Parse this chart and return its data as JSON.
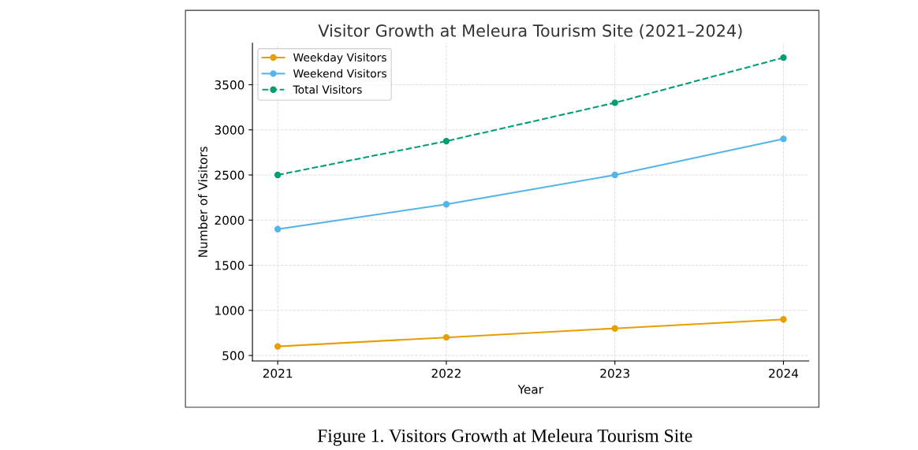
{
  "chart_data": {
    "type": "line",
    "title": "Visitor Growth at Meleura Tourism Site (2021–2024)",
    "xlabel": "Year",
    "ylabel": "Number of Visitors",
    "x": [
      2021,
      2022,
      2023,
      2024
    ],
    "series": [
      {
        "name": "Weekday Visitors",
        "color": "#e69f00",
        "values": [
          600,
          700,
          800,
          900
        ],
        "line_style": "solid"
      },
      {
        "name": "Weekend Visitors",
        "color": "#56b4e9",
        "values": [
          1900,
          2175,
          2500,
          2900
        ],
        "line_style": "solid"
      },
      {
        "name": "Total Visitors",
        "color": "#009e73",
        "values": [
          2500,
          2875,
          3300,
          3800
        ],
        "line_style": "dashed"
      }
    ],
    "xlim": [
      2020.85,
      2024.15
    ],
    "xticks": [
      2021,
      2022,
      2023,
      2024
    ],
    "ylim": [
      440,
      3960
    ],
    "yticks": [
      500,
      1000,
      1500,
      2000,
      2500,
      3000,
      3500
    ],
    "grid": true,
    "legend": "top left",
    "marker": "circle",
    "annotations": [
      "Figure 1. Visitors Growth at Meleura Tourism Site"
    ]
  }
}
